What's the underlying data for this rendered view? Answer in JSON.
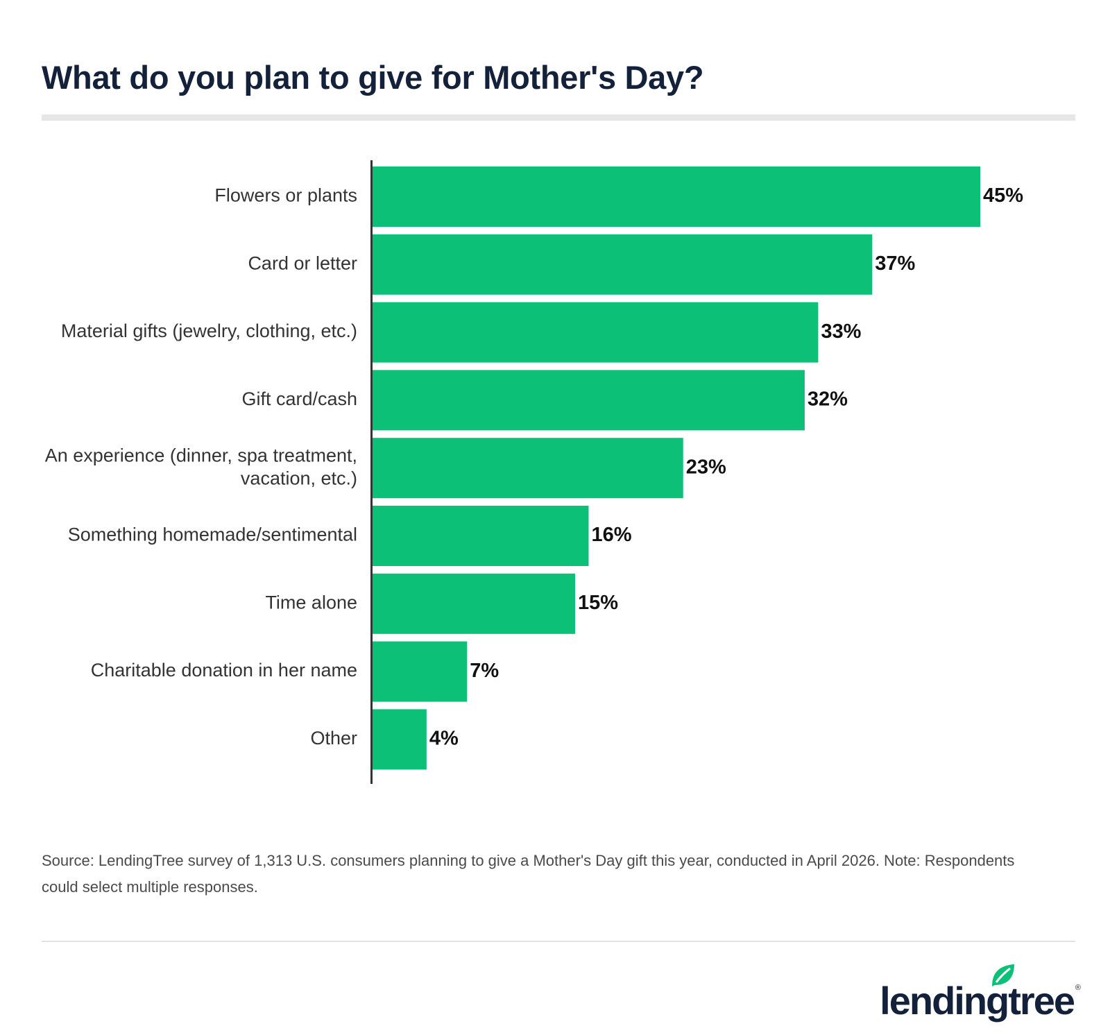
{
  "header": {
    "title": "What do you plan to give for Mother's Day?"
  },
  "chart_data": {
    "type": "bar",
    "orientation": "horizontal",
    "title": "What do you plan to give for Mother's Day?",
    "categories": [
      "Flowers or plants",
      "Card or letter",
      "Material gifts (jewelry, clothing, etc.)",
      "Gift card/cash",
      "An experience (dinner, spa treatment, vacation, etc.)",
      "Something homemade/sentimental",
      "Time alone",
      "Charitable donation in her name",
      "Other"
    ],
    "category_lines": [
      [
        "Flowers or plants"
      ],
      [
        "Card or letter"
      ],
      [
        "Material gifts (jewelry, clothing, etc.)"
      ],
      [
        "Gift card/cash"
      ],
      [
        "An experience (dinner, spa treatment,",
        "vacation, etc.)"
      ],
      [
        "Something homemade/sentimental"
      ],
      [
        "Time alone"
      ],
      [
        "Charitable donation in her name"
      ],
      [
        "Other"
      ]
    ],
    "values": [
      45,
      37,
      33,
      32,
      23,
      16,
      15,
      7,
      4
    ],
    "value_labels": [
      "45%",
      "37%",
      "33%",
      "32%",
      "23%",
      "16%",
      "15%",
      "7%",
      "4%"
    ],
    "unit": "%",
    "xlim": [
      0,
      45
    ],
    "grid": false,
    "legend": "none",
    "colors": {
      "bar": "#0cc177",
      "axis": "#333333"
    }
  },
  "source_note": "Source: LendingTree survey of 1,313 U.S. consumers planning to give a Mother's Day gift this year, conducted in April 2026. Note: Respondents could select multiple responses.",
  "brand": {
    "logo_text": "lendingtree",
    "leaf_icon": "leaf-icon",
    "leaf_color": "#0cc177",
    "text_color": "#14213a"
  }
}
